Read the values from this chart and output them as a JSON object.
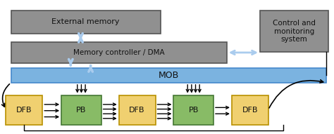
{
  "fig_width": 4.74,
  "fig_height": 1.91,
  "dpi": 100,
  "bg_color": "#ffffff",
  "gray_box_color": "#909090",
  "gray_box_edge": "#555555",
  "blue_box_color": "#7bb3e0",
  "blue_box_edge": "#4488cc",
  "yellow_box_color": "#f0d070",
  "yellow_box_edge": "#b89000",
  "green_box_color": "#88bb66",
  "green_box_edge": "#447733",
  "ext_mem": "External memory",
  "mem_ctrl": "Memory controller / DMA",
  "mob": "MOB",
  "ctrl_sys": "Control and\nmonitoring\nsystem",
  "dfb": "DFB",
  "pb": "PB",
  "text_color": "#111111",
  "arrow_blue": "#aaccee",
  "arrow_black": "#111111"
}
